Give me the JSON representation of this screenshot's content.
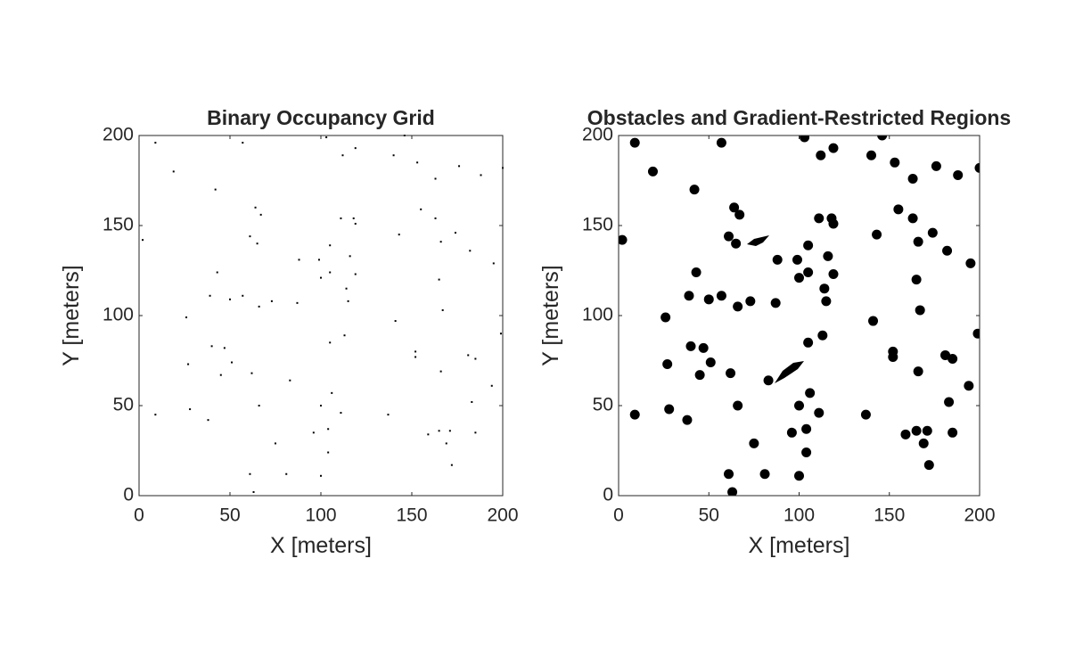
{
  "chart_data": [
    {
      "type": "scatter",
      "title": "Binary Occupancy Grid",
      "x_label": "X [meters]",
      "y_label": "Y [meters]",
      "color": "#000000",
      "x": [
        9,
        19,
        42,
        57,
        103,
        119,
        112,
        146,
        140,
        153,
        163,
        176,
        188,
        200,
        2,
        64,
        67,
        61,
        65,
        43,
        39,
        57,
        50,
        66,
        73,
        88,
        99,
        100,
        105,
        105,
        111,
        118,
        119,
        116,
        119,
        114,
        115,
        87,
        143,
        155,
        163,
        166,
        174,
        182,
        195,
        165,
        167,
        141,
        199,
        26,
        40,
        47,
        27,
        51,
        45,
        62,
        83,
        113,
        105,
        152,
        152,
        181,
        185,
        166,
        194,
        106,
        100,
        111,
        66,
        28,
        9,
        38,
        137,
        183,
        171,
        165,
        159,
        185,
        169,
        172,
        96,
        104,
        104,
        75,
        61,
        81,
        100,
        63
      ],
      "values": [
        196,
        180,
        170,
        196,
        199,
        193,
        189,
        200,
        189,
        185,
        176,
        183,
        178,
        182,
        142,
        160,
        156,
        144,
        140,
        124,
        111,
        111,
        109,
        105,
        108,
        131,
        131,
        121,
        124,
        139,
        154,
        154,
        151,
        133,
        123,
        115,
        108,
        107,
        145,
        159,
        154,
        141,
        146,
        136,
        129,
        120,
        103,
        97,
        90,
        99,
        83,
        82,
        73,
        74,
        67,
        68,
        64,
        89,
        85,
        80,
        77,
        78,
        76,
        69,
        61,
        57,
        50,
        46,
        50,
        48,
        45,
        42,
        45,
        52,
        36,
        36,
        34,
        35,
        29,
        17,
        35,
        37,
        24,
        29,
        12,
        12,
        11,
        2
      ],
      "xlim": [
        0,
        200
      ],
      "ylim": [
        0,
        200
      ],
      "xticks": [
        0,
        50,
        100,
        150,
        200
      ],
      "yticks": [
        0,
        50,
        100,
        150,
        200
      ]
    },
    {
      "type": "scatter",
      "title": "Obstacles and Gradient-Restricted Regions",
      "x_label": "X [meters]",
      "y_label": "Y [meters]",
      "color": "#000000",
      "x": [
        9,
        19,
        42,
        57,
        103,
        119,
        112,
        146,
        140,
        153,
        163,
        176,
        188,
        200,
        2,
        64,
        67,
        61,
        65,
        43,
        39,
        57,
        50,
        66,
        73,
        88,
        99,
        100,
        105,
        105,
        111,
        118,
        119,
        116,
        119,
        114,
        115,
        87,
        143,
        155,
        163,
        166,
        174,
        182,
        195,
        165,
        167,
        141,
        199,
        26,
        40,
        47,
        27,
        51,
        45,
        62,
        83,
        113,
        105,
        152,
        152,
        181,
        185,
        166,
        194,
        106,
        100,
        111,
        66,
        28,
        9,
        38,
        137,
        183,
        171,
        165,
        159,
        185,
        169,
        172,
        96,
        104,
        104,
        75,
        61,
        81,
        100,
        63
      ],
      "values": [
        196,
        180,
        170,
        196,
        199,
        193,
        189,
        200,
        189,
        185,
        176,
        183,
        178,
        182,
        142,
        160,
        156,
        144,
        140,
        124,
        111,
        111,
        109,
        105,
        108,
        131,
        131,
        121,
        124,
        139,
        154,
        154,
        151,
        133,
        123,
        115,
        108,
        107,
        145,
        159,
        154,
        141,
        146,
        136,
        129,
        120,
        103,
        97,
        90,
        99,
        83,
        82,
        73,
        74,
        67,
        68,
        64,
        89,
        85,
        80,
        77,
        78,
        76,
        69,
        61,
        57,
        50,
        46,
        50,
        48,
        45,
        42,
        45,
        52,
        36,
        36,
        34,
        35,
        29,
        17,
        35,
        37,
        24,
        29,
        12,
        12,
        11,
        2
      ],
      "xlim": [
        0,
        200
      ],
      "ylim": [
        0,
        200
      ],
      "xticks": [
        0,
        50,
        100,
        150,
        200
      ],
      "yticks": [
        0,
        50,
        100,
        150,
        200
      ]
    }
  ]
}
